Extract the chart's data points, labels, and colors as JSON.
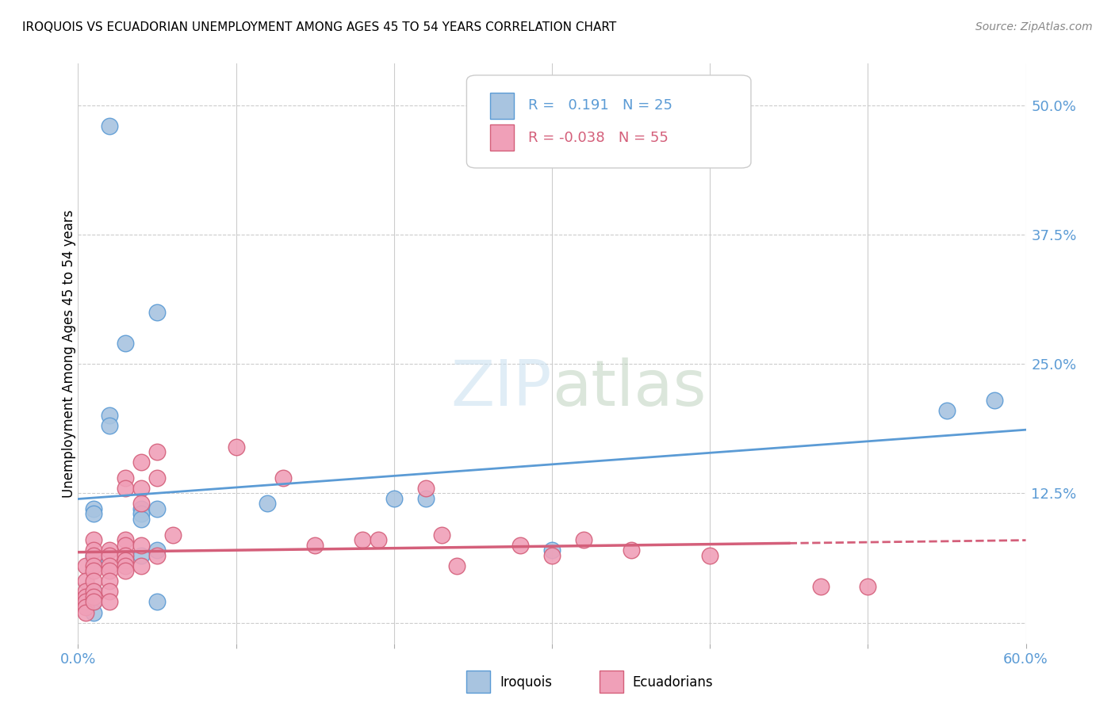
{
  "title": "IROQUOIS VS ECUADORIAN UNEMPLOYMENT AMONG AGES 45 TO 54 YEARS CORRELATION CHART",
  "source": "Source: ZipAtlas.com",
  "ylabel": "Unemployment Among Ages 45 to 54 years",
  "xlim": [
    0.0,
    0.6
  ],
  "ylim": [
    -0.02,
    0.54
  ],
  "background_color": "#ffffff",
  "grid_color": "#cccccc",
  "iroquois_color": "#a8c4e0",
  "ecuadorian_color": "#f0a0b8",
  "iroquois_line_color": "#5b9bd5",
  "ecuadorian_line_color": "#d45f7a",
  "iroquois_R": 0.191,
  "iroquois_N": 25,
  "ecuadorian_R": -0.038,
  "ecuadorian_N": 55,
  "iroquois_scatter": [
    [
      0.02,
      0.48
    ],
    [
      0.01,
      0.11
    ],
    [
      0.01,
      0.105
    ],
    [
      0.01,
      0.065
    ],
    [
      0.01,
      0.06
    ],
    [
      0.01,
      0.03
    ],
    [
      0.01,
      0.02
    ],
    [
      0.01,
      0.01
    ],
    [
      0.02,
      0.2
    ],
    [
      0.02,
      0.19
    ],
    [
      0.03,
      0.27
    ],
    [
      0.04,
      0.11
    ],
    [
      0.04,
      0.105
    ],
    [
      0.04,
      0.1
    ],
    [
      0.04,
      0.065
    ],
    [
      0.05,
      0.3
    ],
    [
      0.05,
      0.11
    ],
    [
      0.05,
      0.07
    ],
    [
      0.05,
      0.02
    ],
    [
      0.12,
      0.115
    ],
    [
      0.2,
      0.12
    ],
    [
      0.22,
      0.12
    ],
    [
      0.3,
      0.07
    ],
    [
      0.55,
      0.205
    ],
    [
      0.58,
      0.215
    ]
  ],
  "ecuadorian_scatter": [
    [
      0.005,
      0.055
    ],
    [
      0.005,
      0.04
    ],
    [
      0.005,
      0.03
    ],
    [
      0.005,
      0.025
    ],
    [
      0.005,
      0.02
    ],
    [
      0.005,
      0.015
    ],
    [
      0.005,
      0.01
    ],
    [
      0.01,
      0.08
    ],
    [
      0.01,
      0.07
    ],
    [
      0.01,
      0.065
    ],
    [
      0.01,
      0.055
    ],
    [
      0.01,
      0.05
    ],
    [
      0.01,
      0.04
    ],
    [
      0.01,
      0.03
    ],
    [
      0.01,
      0.025
    ],
    [
      0.01,
      0.02
    ],
    [
      0.02,
      0.07
    ],
    [
      0.02,
      0.065
    ],
    [
      0.02,
      0.055
    ],
    [
      0.02,
      0.05
    ],
    [
      0.02,
      0.04
    ],
    [
      0.02,
      0.03
    ],
    [
      0.02,
      0.02
    ],
    [
      0.03,
      0.14
    ],
    [
      0.03,
      0.13
    ],
    [
      0.03,
      0.08
    ],
    [
      0.03,
      0.075
    ],
    [
      0.03,
      0.065
    ],
    [
      0.03,
      0.06
    ],
    [
      0.03,
      0.055
    ],
    [
      0.03,
      0.05
    ],
    [
      0.04,
      0.155
    ],
    [
      0.04,
      0.13
    ],
    [
      0.04,
      0.115
    ],
    [
      0.04,
      0.075
    ],
    [
      0.04,
      0.055
    ],
    [
      0.05,
      0.165
    ],
    [
      0.05,
      0.14
    ],
    [
      0.05,
      0.065
    ],
    [
      0.06,
      0.085
    ],
    [
      0.1,
      0.17
    ],
    [
      0.13,
      0.14
    ],
    [
      0.15,
      0.075
    ],
    [
      0.18,
      0.08
    ],
    [
      0.19,
      0.08
    ],
    [
      0.22,
      0.13
    ],
    [
      0.23,
      0.085
    ],
    [
      0.24,
      0.055
    ],
    [
      0.28,
      0.075
    ],
    [
      0.3,
      0.065
    ],
    [
      0.32,
      0.08
    ],
    [
      0.35,
      0.07
    ],
    [
      0.4,
      0.065
    ],
    [
      0.47,
      0.035
    ],
    [
      0.5,
      0.035
    ]
  ]
}
